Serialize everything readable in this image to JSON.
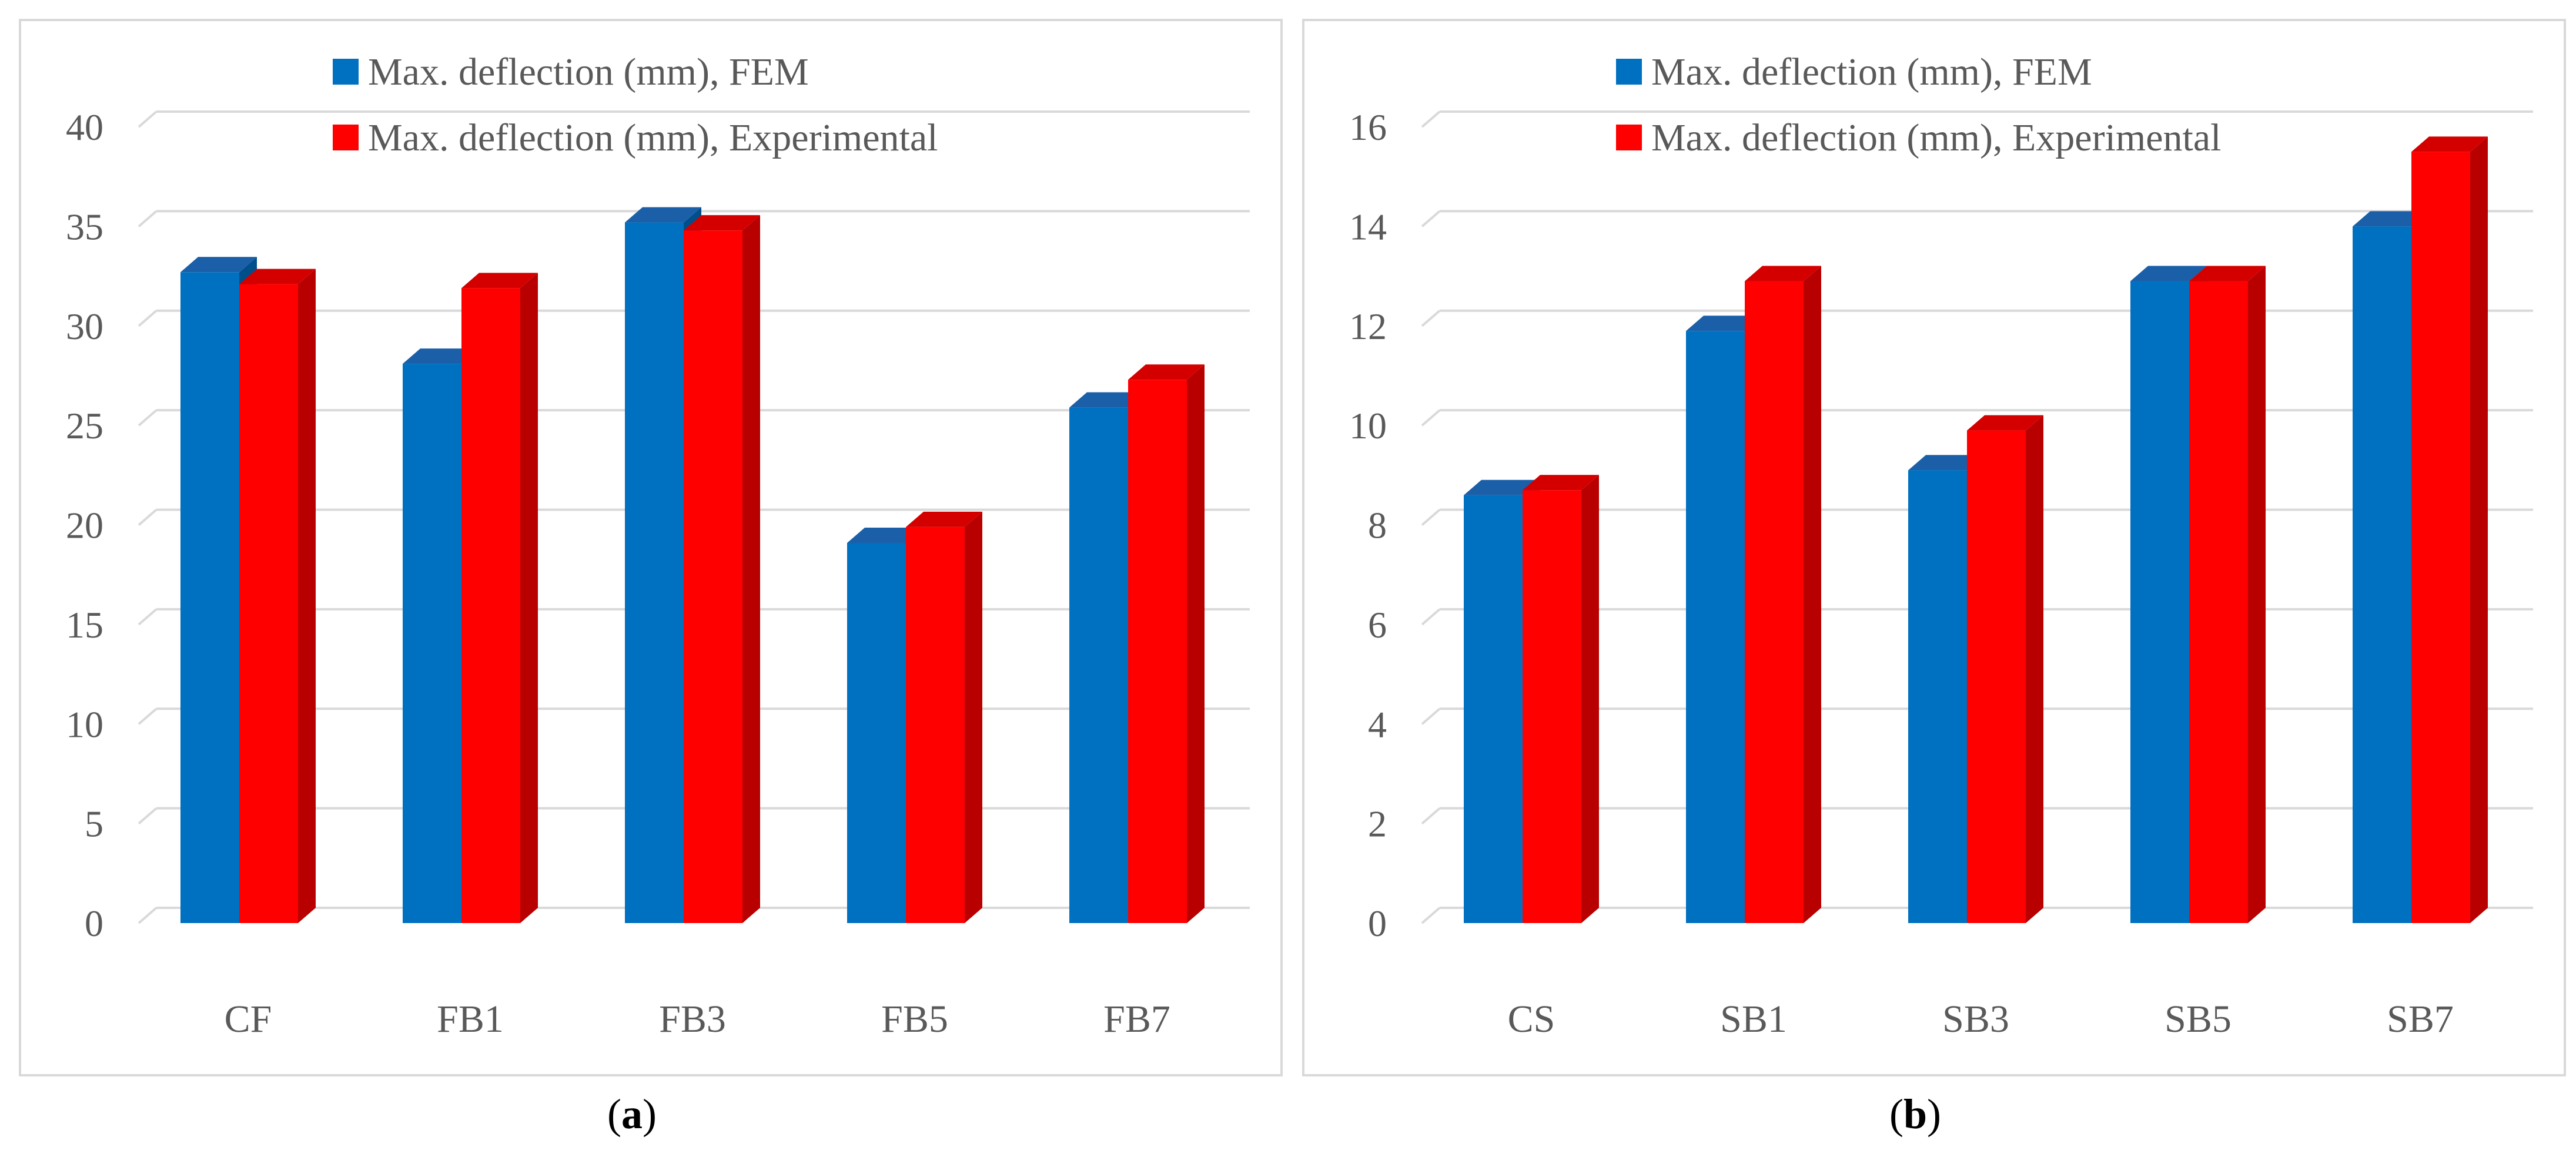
{
  "chart_data": [
    {
      "type": "bar",
      "label": "a",
      "categories": [
        "CF",
        "FB1",
        "FB3",
        "FB5",
        "FB7"
      ],
      "series": [
        {
          "name": "Max. deflection (mm), FEM",
          "values": [
            32.7,
            28.1,
            35.2,
            19.1,
            25.9
          ]
        },
        {
          "name": "Max. deflection (mm), Experimental",
          "values": [
            32.1,
            31.9,
            34.8,
            19.9,
            27.3
          ]
        }
      ],
      "yticks": [
        "0",
        "5",
        "10",
        "15",
        "20",
        "25",
        "30",
        "35",
        "40"
      ],
      "ylim": [
        0,
        40
      ],
      "title": "",
      "xlabel": "",
      "ylabel": "",
      "grid": true,
      "legend": "top-center"
    },
    {
      "type": "bar",
      "label": "b",
      "categories": [
        "CS",
        "SB1",
        "SB3",
        "SB5",
        "SB7"
      ],
      "series": [
        {
          "name": "Max. deflection (mm), FEM",
          "values": [
            8.6,
            11.9,
            9.1,
            12.9,
            14.0
          ]
        },
        {
          "name": "Max. deflection (mm), Experimental",
          "values": [
            8.7,
            12.9,
            9.9,
            12.9,
            15.5
          ]
        }
      ],
      "yticks": [
        "0",
        "2",
        "4",
        "6",
        "8",
        "10",
        "12",
        "14",
        "16"
      ],
      "ylim": [
        0,
        16
      ],
      "title": "",
      "xlabel": "",
      "ylabel": "",
      "grid": true,
      "legend": "top-center"
    }
  ],
  "colors": {
    "fem": "#0070c0",
    "fem_top": "#1a5fa8",
    "fem_side": "#004f8a",
    "exp": "#ff0000",
    "exp_top": "#d40000",
    "exp_side": "#b80000",
    "grid": "#d9d9d9",
    "axis_text": "#595959"
  },
  "captions": {
    "a": {
      "open": "(",
      "letter": "a",
      "close": ")"
    },
    "b": {
      "open": "(",
      "letter": "b",
      "close": ")"
    }
  }
}
